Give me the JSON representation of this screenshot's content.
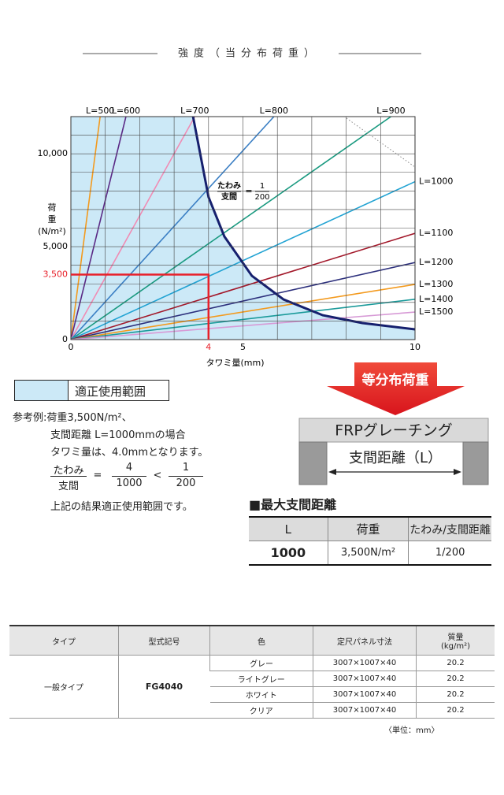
{
  "heading": "強度（当分布荷重）",
  "chart_data": {
    "type": "line",
    "xlabel": "タワミ量(mm)",
    "ylabel": [
      "荷",
      "重",
      "(N/m²)"
    ],
    "xlim": [
      0,
      10
    ],
    "ylim": [
      0,
      12000
    ],
    "xticks": [
      0,
      5,
      10
    ],
    "yticks": [
      0,
      {
        "value": 5000,
        "label": "5,000"
      },
      {
        "value": 10000,
        "label": "10,000"
      }
    ],
    "grid": true,
    "xgrid": [
      0,
      1,
      2,
      3,
      4,
      5,
      6,
      7,
      8,
      9,
      10
    ],
    "ygrid": [
      0,
      1000,
      2000,
      3000,
      4000,
      5000,
      6000,
      7000,
      8000,
      9000,
      10000,
      11000,
      12000
    ],
    "series": [
      {
        "name": "L=500",
        "color": "#f39a1e",
        "x": [
          0,
          0.85
        ],
        "values": [
          0,
          12000
        ]
      },
      {
        "name": "L=600",
        "color": "#5b2a86",
        "x": [
          0,
          1.6
        ],
        "values": [
          0,
          12000
        ]
      },
      {
        "name": "L=700",
        "color": "#f08cb4",
        "x": [
          0,
          3.6
        ],
        "values": [
          0,
          12000
        ]
      },
      {
        "name": "L=800",
        "color": "#3b7fc4",
        "x": [
          0,
          5.9
        ],
        "values": [
          0,
          12000
        ]
      },
      {
        "name": "L=900",
        "color": "#1a9a80",
        "x": [
          0,
          9.3
        ],
        "values": [
          0,
          12000
        ]
      },
      {
        "name": "L=1000",
        "color": "#22a3d3",
        "x": [
          0,
          10
        ],
        "values": [
          0,
          8500
        ]
      },
      {
        "name": "L=1100",
        "color": "#a3192b",
        "x": [
          0,
          10
        ],
        "values": [
          0,
          5720
        ]
      },
      {
        "name": "L=1200",
        "color": "#2c2f7c",
        "x": [
          0,
          10
        ],
        "values": [
          0,
          4150
        ]
      },
      {
        "name": "L=1300",
        "color": "#f39a1e",
        "x": [
          0,
          10
        ],
        "values": [
          0,
          2970
        ]
      },
      {
        "name": "L=1400",
        "color": "#1a9a9a",
        "x": [
          0,
          10
        ],
        "values": [
          0,
          2170
        ]
      },
      {
        "name": "L=1500",
        "color": "#d79ad6",
        "x": [
          0,
          10
        ],
        "values": [
          0,
          1480
        ]
      }
    ],
    "limit_curve": {
      "color": "#16206e",
      "x": [
        3.55,
        3.78,
        4.0,
        4.46,
        5.26,
        6.18,
        7.32,
        8.47,
        10
      ],
      "values": [
        12000,
        9790,
        7670,
        5550,
        3430,
        2160,
        1310,
        890,
        550
      ]
    },
    "region_color": "#cce9f7",
    "annotation": {
      "top": "たわみ",
      "bottom": "支間",
      "eq": "=",
      "num": 1,
      "den": 200
    },
    "example": {
      "x": 4,
      "y": {
        "value": 3500,
        "label": "3,500"
      },
      "color": "#e8202a"
    },
    "region_label": "適正使用範囲"
  },
  "example_text": {
    "lines": [
      "参考例:荷重3,500N/m²、",
      "支間距離 L=1000mmの場合",
      "タワミ量は、4.0mmとなります。"
    ],
    "fraction": {
      "left_num": "たわみ",
      "left_den": "支間",
      "eq": "=",
      "mid_num": 4,
      "mid_den": 1000,
      "lt": "<",
      "right_num": 1,
      "right_den": 200
    },
    "conclusion": "上記の結果適正使用範囲です。"
  },
  "diagram": {
    "load": "等分布荷重",
    "product": "FRPグレーチング",
    "span": "支間距離（L）"
  },
  "max_span": {
    "title": "■最大支間距離",
    "header": [
      "L",
      "荷重",
      "たわみ/支間距離"
    ],
    "row": [
      1000,
      "3,500N/m²",
      "1/200"
    ]
  },
  "spec_table": {
    "header": [
      "タイプ",
      "型式記号",
      "色",
      "定尺パネル寸法"
    ],
    "mass_header": [
      "質量",
      "(kg/m²)"
    ],
    "type": "一般タイプ",
    "model": "FG4040",
    "variants": [
      {
        "color": "グレー",
        "size": "3007×1007×40",
        "mass": 20.2
      },
      {
        "color": "ライトグレー",
        "size": "3007×1007×40",
        "mass": 20.2
      },
      {
        "color": "ホワイト",
        "size": "3007×1007×40",
        "mass": 20.2
      },
      {
        "color": "クリア",
        "size": "3007×1007×40",
        "mass": 20.2
      }
    ]
  },
  "unit_note": "〈単位：mm〉"
}
